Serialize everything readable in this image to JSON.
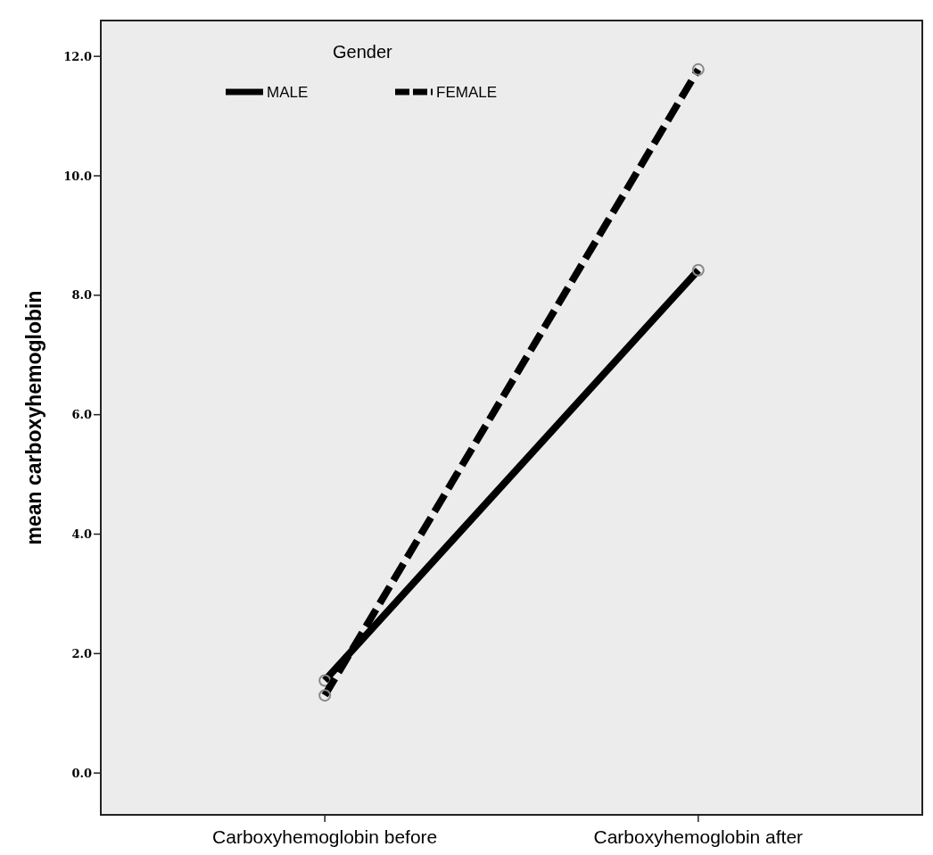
{
  "chart_data": {
    "type": "line",
    "ylabel": "mean carboxyhemoglobin",
    "legend_title": "Gender",
    "categories": [
      "Carboxyhemoglobin before",
      "Carboxyhemoglobin after"
    ],
    "series": [
      {
        "name": "MALE",
        "color": "#000000",
        "line_style": "solid",
        "values": [
          1.55,
          8.42
        ]
      },
      {
        "name": "FEMALE",
        "color": "#000000",
        "line_style": "dashed",
        "values": [
          1.3,
          11.78
        ]
      }
    ],
    "ylim": [
      -0.7,
      12.6
    ],
    "yticks": [
      {
        "value": 0,
        "label": "0.0"
      },
      {
        "value": 2,
        "label": "2.0"
      },
      {
        "value": 4,
        "label": "4.0"
      },
      {
        "value": 6,
        "label": "6.0"
      },
      {
        "value": 8,
        "label": "8.0"
      },
      {
        "value": 10,
        "label": "10.0"
      },
      {
        "value": 12,
        "label": "12.0"
      }
    ],
    "grid": false,
    "legend": "top left",
    "marker": "circle"
  }
}
